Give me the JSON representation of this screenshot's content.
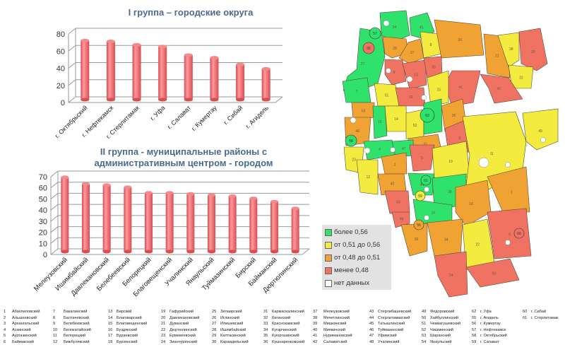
{
  "chart_data": [
    {
      "type": "bar",
      "title": "I группа – городские округа",
      "categories": [
        "г. Октябрьский",
        "г. Нефтекамск",
        "г. Стерлитамак",
        "г. Уфа",
        "г. Салават",
        "г. Кумертау",
        "г. Сибай",
        "г. Агидель"
      ],
      "values": [
        69,
        68,
        64,
        62,
        52,
        49,
        41,
        36
      ],
      "ylim": [
        0,
        80
      ],
      "yticks": [
        0,
        20,
        40,
        60,
        80
      ],
      "grid": true,
      "color": "#f06a6e"
    },
    {
      "type": "bar",
      "title": "II группа - муниципальные районы с административным центром - городом",
      "title_lines": [
        "II группа - муниципальные районы с",
        "административным центром - городом"
      ],
      "categories": [
        "Мелеузовский",
        "Ишимбайский",
        "Давлекановский",
        "Белебеевский",
        "Белорецкий",
        "Благовещенский",
        "Учалинский",
        "Янаульский",
        "Туймазинский",
        "Бирский",
        "Баймакский",
        "Дюртюлинский"
      ],
      "values": [
        67,
        61,
        60,
        58,
        53,
        53,
        52,
        51,
        50,
        48,
        45,
        39
      ],
      "ylim": [
        0,
        70
      ],
      "yticks": [
        0,
        10,
        20,
        30,
        40,
        50,
        60,
        70
      ],
      "grid": true,
      "color": "#f06a6e"
    }
  ],
  "map": {
    "colors": {
      "high": "#2ee26c",
      "mid_high": "#f3ec3e",
      "mid_low": "#f0a232",
      "low": "#f07262",
      "none": "#ffffff"
    },
    "legend": [
      {
        "label": "более 0,56",
        "color": "#2ee26c"
      },
      {
        "label": "от 0,51 до 0,56",
        "color": "#f3ec3e"
      },
      {
        "label": "от 0,48 до 0,51",
        "color": "#f0a232"
      },
      {
        "label": "менее 0,48",
        "color": "#f07262"
      },
      {
        "label": "нет данных",
        "color": "#ffffff"
      }
    ]
  },
  "districts": [
    [
      "1",
      "Абзелиловский"
    ],
    [
      "2",
      "Альшеевский"
    ],
    [
      "3",
      "Архангельский"
    ],
    [
      "4",
      "Аскинский"
    ],
    [
      "5",
      "Аургазинский"
    ],
    [
      "6",
      "Баймакский"
    ],
    [
      "7",
      "Бакалинский"
    ],
    [
      "8",
      "Балтачевский"
    ],
    [
      "9",
      "Белебеевский"
    ],
    [
      "10",
      "Белокатайский"
    ],
    [
      "11",
      "Белорецкий"
    ],
    [
      "12",
      "Бижбулякский"
    ],
    [
      "13",
      "Бирский"
    ],
    [
      "14",
      "Благоварский"
    ],
    [
      "15",
      "Благовещенский"
    ],
    [
      "16",
      "Буздякский"
    ],
    [
      "17",
      "Бураевский"
    ],
    [
      "18",
      "Бурзянский"
    ],
    [
      "19",
      "Гафурийский"
    ],
    [
      "20",
      "Давлекановский"
    ],
    [
      "21",
      "Дуванский"
    ],
    [
      "22",
      "Дюртюлинский"
    ],
    [
      "23",
      "Ермекеевский"
    ],
    [
      "24",
      "Зианчуринский"
    ],
    [
      "25",
      "Зилаирский"
    ],
    [
      "26",
      "Иглинский"
    ],
    [
      "27",
      "Илишевский"
    ],
    [
      "28",
      "Ишимбайский"
    ],
    [
      "29",
      "Калтасинский"
    ],
    [
      "30",
      "Караидельский"
    ],
    [
      "31",
      "Кармаскалинский"
    ],
    [
      "32",
      "Кигинский"
    ],
    [
      "33",
      "Краснокамский"
    ],
    [
      "34",
      "Кугарчинский"
    ],
    [
      "35",
      "Куюргазинский"
    ],
    [
      "36",
      "Кушнаренковский"
    ],
    [
      "37",
      "Мелеузовский"
    ],
    [
      "38",
      "Мечетлинский"
    ],
    [
      "39",
      "Мишкинский"
    ],
    [
      "40",
      "Миякинский"
    ],
    [
      "41",
      "Нуримановский"
    ],
    [
      "42",
      "Салаватский"
    ],
    [
      "43",
      "Стерлибашевский"
    ],
    [
      "44",
      "Стерлитамакский"
    ],
    [
      "45",
      "Татышлинский"
    ],
    [
      "46",
      "Туймазинский"
    ],
    [
      "47",
      "Уфимский"
    ],
    [
      "48",
      "Учалинский"
    ],
    [
      "49",
      "Федоровский"
    ],
    [
      "50",
      "Хайбуллинский"
    ],
    [
      "51",
      "Чекмагушевский"
    ],
    [
      "52",
      "Чишминский"
    ],
    [
      "53",
      "Шаранский"
    ],
    [
      "54",
      "Янаульский"
    ],
    [
      "62",
      "г. Уфа"
    ],
    [
      "55",
      "г. Агидель"
    ],
    [
      "56",
      "г. Кумертау"
    ],
    [
      "57",
      "г. Нефтекамск"
    ],
    [
      "58",
      "г. Октябрьский"
    ],
    [
      "59",
      "г. Салават"
    ],
    [
      "60",
      "г. Сибай"
    ],
    [
      "61",
      "г. Стерлитамак"
    ]
  ]
}
